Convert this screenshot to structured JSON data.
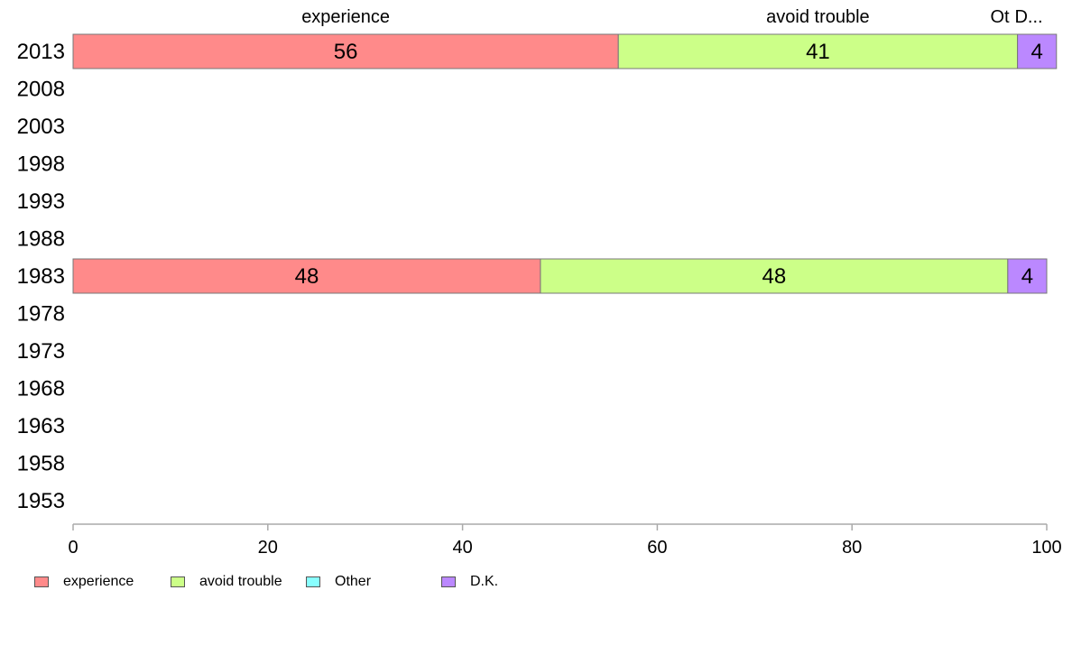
{
  "chart_data": {
    "type": "bar",
    "orientation": "horizontal",
    "stacked": true,
    "categories": [
      "2013",
      "2008",
      "2003",
      "1998",
      "1993",
      "1988",
      "1983",
      "1978",
      "1973",
      "1968",
      "1963",
      "1958",
      "1953"
    ],
    "series": [
      {
        "name": "experience",
        "color": "#ff8a8a",
        "values": [
          56,
          null,
          null,
          null,
          null,
          null,
          48,
          null,
          null,
          null,
          null,
          null,
          null
        ]
      },
      {
        "name": "avoid trouble",
        "color": "#ccff88",
        "values": [
          41,
          null,
          null,
          null,
          null,
          null,
          48,
          null,
          null,
          null,
          null,
          null,
          null
        ]
      },
      {
        "name": "Other",
        "color": "#88ffff",
        "values": [
          0,
          null,
          null,
          null,
          null,
          null,
          0,
          null,
          null,
          null,
          null,
          null,
          null
        ]
      },
      {
        "name": "D.K.",
        "color": "#bb88ff",
        "values": [
          4,
          null,
          null,
          null,
          null,
          null,
          4,
          null,
          null,
          null,
          null,
          null,
          null
        ]
      }
    ],
    "top_labels": [
      "experience",
      "avoid trouble",
      "Ot",
      "D..."
    ],
    "xlim": [
      0,
      100
    ],
    "x_ticks": [
      0,
      20,
      40,
      60,
      80,
      100
    ],
    "grid": false,
    "legend_position": "bottom-left"
  }
}
